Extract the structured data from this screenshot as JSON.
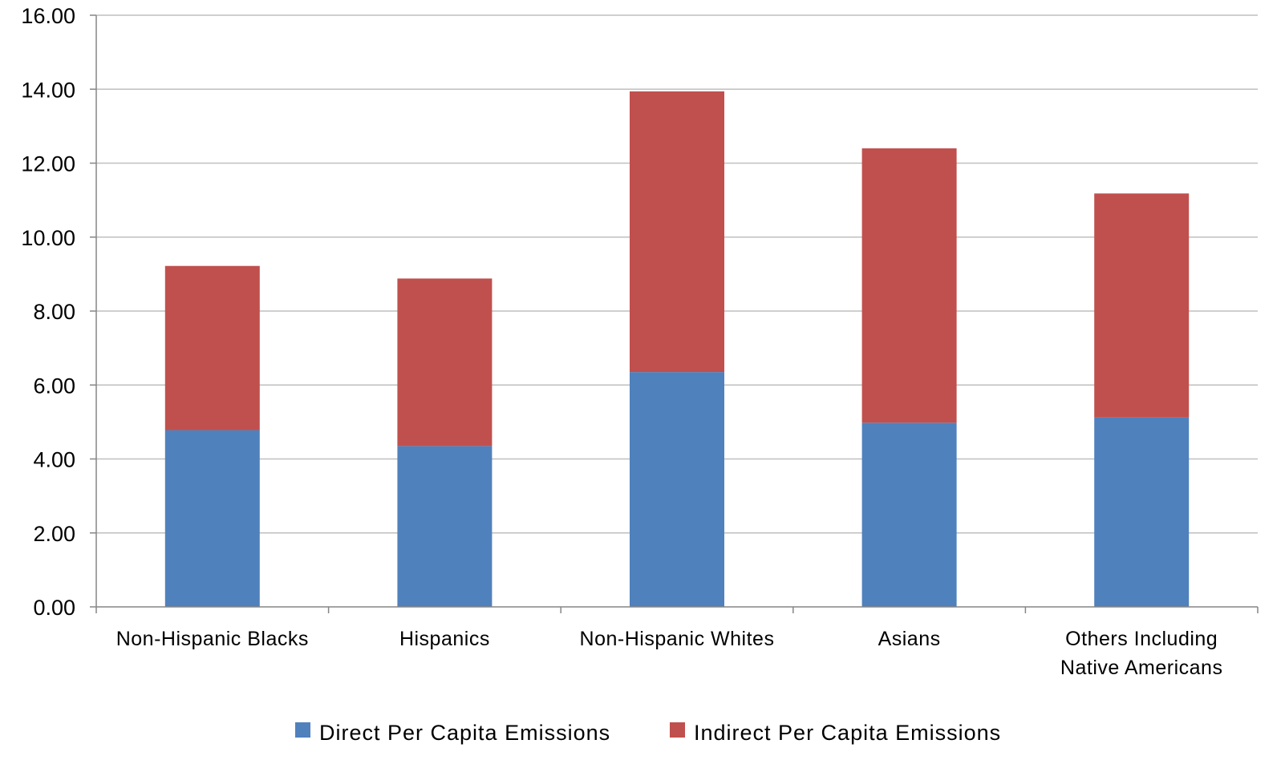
{
  "chart_data": {
    "type": "bar",
    "stacked": true,
    "title": "",
    "xlabel": "",
    "ylabel": "",
    "categories": [
      [
        "Non-Hispanic Blacks"
      ],
      [
        "Hispanics"
      ],
      [
        "Non-Hispanic Whites"
      ],
      [
        "Asians"
      ],
      [
        "Others Including",
        "Native Americans"
      ]
    ],
    "series": [
      {
        "name": "Direct Per Capita Emissions",
        "color": "#4f81bd",
        "values": [
          4.78,
          4.35,
          6.35,
          4.98,
          5.12
        ]
      },
      {
        "name": "Indirect Per Capita Emissions",
        "color": "#c0504d",
        "values": [
          4.44,
          4.53,
          7.59,
          7.42,
          6.06
        ]
      }
    ],
    "ylim": [
      0,
      16
    ],
    "yticks": [
      "0.00",
      "2.00",
      "4.00",
      "6.00",
      "8.00",
      "10.00",
      "12.00",
      "14.00",
      "16.00"
    ],
    "grid": true,
    "legend_position": "bottom"
  }
}
